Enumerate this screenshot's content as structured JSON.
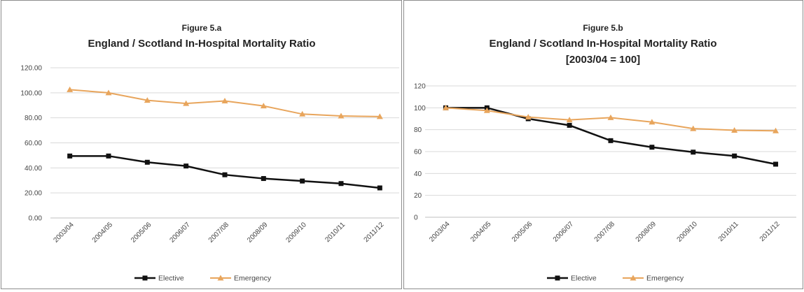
{
  "chart_data": [
    {
      "type": "line",
      "figure_label": "Figure 5.a",
      "title": "England / Scotland In-Hospital Mortality Ratio",
      "subtitle": "",
      "categories": [
        "2003/04",
        "2004/05",
        "2005/06",
        "2006/07",
        "2007/08",
        "2008/09",
        "2009/10",
        "2010/11",
        "2011/12"
      ],
      "series": [
        {
          "name": "Elective",
          "color": "#111111",
          "marker": "square",
          "values": [
            49.5,
            49.5,
            44.5,
            41.5,
            34.5,
            31.5,
            29.5,
            27.5,
            24.0
          ]
        },
        {
          "name": "Emergency",
          "color": "#e8a55c",
          "marker": "triangle",
          "values": [
            102.5,
            100.0,
            94.0,
            91.5,
            93.5,
            89.5,
            83.0,
            81.5,
            81.0
          ]
        }
      ],
      "ylim": [
        0,
        120
      ],
      "yticks": [
        "0.00",
        "20.00",
        "40.00",
        "60.00",
        "80.00",
        "100.00",
        "120.00"
      ],
      "grid": true,
      "legend": "bottom"
    },
    {
      "type": "line",
      "figure_label": "Figure 5.b",
      "title": "England / Scotland In-Hospital Mortality Ratio",
      "subtitle": "[2003/04 = 100]",
      "categories": [
        "2003/04",
        "2004/05",
        "2005/06",
        "2006/07",
        "2007/08",
        "2008/09",
        "2009/10",
        "2010/11",
        "2011/12"
      ],
      "series": [
        {
          "name": "Elective",
          "color": "#111111",
          "marker": "square",
          "values": [
            100,
            100,
            90,
            84,
            70,
            64,
            59.5,
            56,
            48.5
          ]
        },
        {
          "name": "Emergency",
          "color": "#e8a55c",
          "marker": "triangle",
          "values": [
            100,
            97.5,
            91.5,
            89,
            91,
            87,
            81,
            79.5,
            79
          ]
        }
      ],
      "ylim": [
        0,
        120
      ],
      "yticks": [
        "0",
        "20",
        "40",
        "60",
        "80",
        "100",
        "120"
      ],
      "grid": true,
      "legend": "bottom"
    }
  ]
}
